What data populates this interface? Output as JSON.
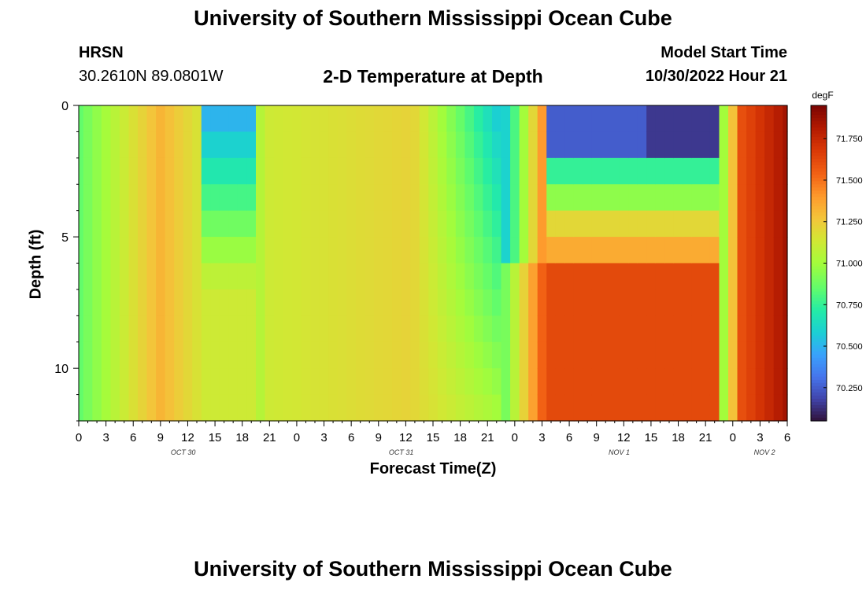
{
  "header": {
    "title": "University of Southern Mississippi Ocean Cube",
    "station": "HRSN",
    "coords": "30.2610N  89.0801W",
    "subtitle": "2-D Temperature at Depth",
    "model_start_label": "Model Start Time",
    "model_start_value": "10/30/2022 Hour 21"
  },
  "footer": {
    "title": "University of Southern Mississippi Ocean Cube"
  },
  "chart_data": {
    "type": "heatmap",
    "title": "2-D Temperature at Depth",
    "xlabel": "Forecast Time(Z)",
    "ylabel": "Depth (ft)",
    "x_hours_range": [
      0,
      78
    ],
    "x_tick_labels": [
      "0",
      "3",
      "6",
      "9",
      "12",
      "15",
      "18",
      "21",
      "0",
      "3",
      "6",
      "9",
      "12",
      "15",
      "18",
      "21",
      "0",
      "3",
      "6",
      "9",
      "12",
      "15",
      "18",
      "21",
      "0",
      "3",
      "6"
    ],
    "day_labels": [
      {
        "label": "OCT 30",
        "hour": 11.5
      },
      {
        "label": "OCT 31",
        "hour": 35.5
      },
      {
        "label": "NOV 1",
        "hour": 59.5
      },
      {
        "label": "NOV 2",
        "hour": 75.5
      }
    ],
    "ylim": [
      0,
      12
    ],
    "y_tick_labels": [
      {
        "label": "0",
        "value": 0
      },
      {
        "label": "5",
        "value": 5
      },
      {
        "label": "10",
        "value": 10
      }
    ],
    "colorbar": {
      "units": "degF",
      "range": [
        70.05,
        71.95
      ],
      "tick_labels": [
        "71.750",
        "71.500",
        "71.250",
        "71.000",
        "70.750",
        "70.500",
        "70.250"
      ],
      "tick_values": [
        71.75,
        71.5,
        71.25,
        71.0,
        70.75,
        70.5,
        70.25
      ]
    },
    "value_range_degF": [
      70.1,
      71.9
    ],
    "depth_levels": 12,
    "time_steps": 79
  }
}
